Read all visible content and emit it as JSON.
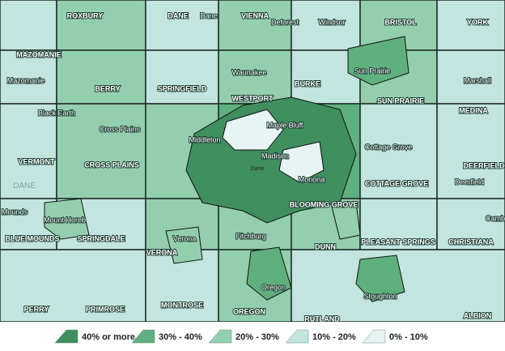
{
  "labels": [
    "ROXBURY",
    "DANE",
    "Dane",
    "VIENNA",
    "Deforest",
    "Windsor",
    "BRISTOL",
    "YORK",
    "MAZOMANIE",
    "Mazomanie",
    "BERRY",
    "SPRINGFIELD",
    "Waunakee",
    "BURKE",
    "Sun Prairie",
    "Marshall",
    "WESTPORT",
    "SUN PRAIRIE",
    "MEDINA",
    "Black Earth",
    "Cross Plains",
    "Maple Bluff",
    "Middleton",
    "Cottage Grove",
    "VERMONT",
    "CROSS PLAINS",
    "Madison",
    "Dane",
    "Monona",
    "COTTAGE GROVE",
    "DEERFIELD",
    "Deerfield",
    "DANE",
    "Mounds",
    "Mount Horeb",
    "BLOOMING GROVE",
    "Camb",
    "BLUE MOUNDS",
    "SPRINGDALE",
    "Verona",
    "Fitchburg",
    "DUNN",
    "PLEASANT SPRINGS",
    "CHRISTIANA",
    "VERONA",
    "Oregon",
    "Stoughton",
    "PERRY",
    "PRIMROSE",
    "MONTROSE",
    "OREGON",
    "RUTLAND",
    "ALBION"
  ],
  "legend": [
    {
      "label": "40% or more",
      "color": "#3f8f5f"
    },
    {
      "label": "30% - 40%",
      "color": "#5fb07f"
    },
    {
      "label": "20% - 30%",
      "color": "#93cfae"
    },
    {
      "label": "10% - 20%",
      "color": "#c2e6df"
    },
    {
      "label": "0% - 10%",
      "color": "#e6f5f3"
    }
  ]
}
